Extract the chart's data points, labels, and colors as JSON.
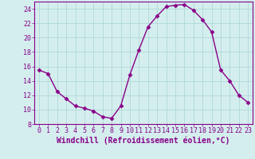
{
  "x": [
    0,
    1,
    2,
    3,
    4,
    5,
    6,
    7,
    8,
    9,
    10,
    11,
    12,
    13,
    14,
    15,
    16,
    17,
    18,
    19,
    20,
    21,
    22,
    23
  ],
  "y": [
    15.5,
    15.0,
    12.5,
    11.5,
    10.5,
    10.2,
    9.8,
    9.0,
    8.8,
    10.5,
    14.8,
    18.3,
    21.5,
    23.0,
    24.3,
    24.5,
    24.6,
    23.8,
    22.5,
    20.8,
    15.5,
    14.0,
    12.0,
    11.0
  ],
  "line_color": "#880088",
  "marker": "D",
  "marker_size": 2.5,
  "linewidth": 1.0,
  "xlabel": "Windchill (Refroidissement éolien,°C)",
  "xlabel_fontsize": 7,
  "ylim": [
    8,
    25
  ],
  "xlim": [
    -0.5,
    23.5
  ],
  "yticks": [
    8,
    10,
    12,
    14,
    16,
    18,
    20,
    22,
    24
  ],
  "xticks": [
    0,
    1,
    2,
    3,
    4,
    5,
    6,
    7,
    8,
    9,
    10,
    11,
    12,
    13,
    14,
    15,
    16,
    17,
    18,
    19,
    20,
    21,
    22,
    23
  ],
  "background_color": "#d4eeee",
  "grid_color": "#b0d8d8",
  "tick_fontsize": 6,
  "label_color": "#880088"
}
